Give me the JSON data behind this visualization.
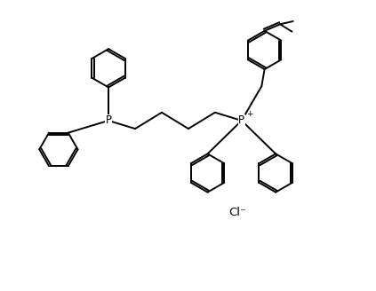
{
  "bg_color": "#ffffff",
  "line_color": "#000000",
  "line_width": 1.4,
  "font_size_atom": 8.5,
  "font_size_cl": 9.5,
  "fig_width": 4.23,
  "fig_height": 3.28,
  "dpi": 100,
  "xlim": [
    0,
    10
  ],
  "ylim": [
    0,
    7.75
  ]
}
